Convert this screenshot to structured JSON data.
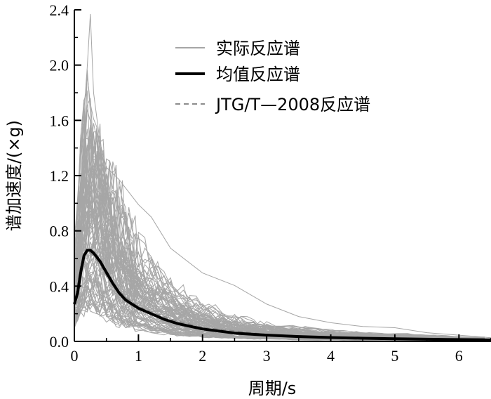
{
  "chart_data": {
    "type": "line",
    "title": "",
    "xlabel": "周期/s",
    "ylabel": "谱加速度/(×g)",
    "xlim": [
      0,
      6.5
    ],
    "ylim": [
      0,
      2.4
    ],
    "x_ticks": [
      "0",
      "1",
      "2",
      "3",
      "4",
      "5",
      "6"
    ],
    "y_ticks": [
      "0.0",
      "0.4",
      "0.8",
      "1.2",
      "1.6",
      "2.0",
      "2.4"
    ],
    "grid": false,
    "legend_position": "top-center",
    "colors": {
      "actual": "#a6a6a6",
      "mean": "#000000",
      "code": "#8c8c8c"
    },
    "legend": [
      {
        "name": "实际反应谱",
        "style": "solid-gray"
      },
      {
        "name": "均值反应谱",
        "style": "solid-black-thick"
      },
      {
        "name": "JTG/T—2008反应谱",
        "style": "dashed-gray"
      }
    ],
    "mean_spectrum": {
      "name": "均值反应谱",
      "x": [
        0,
        0.05,
        0.1,
        0.15,
        0.2,
        0.25,
        0.3,
        0.4,
        0.5,
        0.6,
        0.7,
        0.8,
        0.9,
        1.0,
        1.2,
        1.4,
        1.6,
        1.8,
        2.0,
        2.5,
        3.0,
        3.5,
        4.0,
        4.5,
        5.0,
        5.5,
        6.0,
        6.5
      ],
      "y": [
        0.27,
        0.35,
        0.5,
        0.62,
        0.66,
        0.66,
        0.64,
        0.58,
        0.5,
        0.42,
        0.35,
        0.3,
        0.27,
        0.24,
        0.2,
        0.16,
        0.13,
        0.11,
        0.09,
        0.06,
        0.045,
        0.035,
        0.028,
        0.023,
        0.019,
        0.016,
        0.013,
        0.011
      ]
    },
    "code_spectrum": {
      "name": "JTG/T—2008反应谱",
      "x": [
        0,
        0.1,
        0.2,
        0.3,
        0.4,
        0.5,
        0.6,
        0.8,
        1.0,
        1.5,
        2.0,
        3.0,
        4.0,
        5.0,
        6.0,
        6.5
      ],
      "y": [
        0.27,
        0.55,
        0.66,
        0.62,
        0.56,
        0.48,
        0.41,
        0.32,
        0.25,
        0.16,
        0.1,
        0.05,
        0.03,
        0.02,
        0.015,
        0.012
      ]
    },
    "actual_spectra_envelope": {
      "name": "实际反应谱",
      "x": [
        0,
        0.1,
        0.2,
        0.25,
        0.3,
        0.4,
        0.5,
        0.7,
        1.0,
        1.2,
        1.5,
        2.0,
        2.5,
        3.0,
        3.5,
        4.0,
        4.5,
        5.0,
        5.5,
        6.0,
        6.5
      ],
      "y": [
        0.8,
        1.5,
        2.2,
        2.37,
        2.0,
        1.6,
        1.4,
        1.3,
        1.1,
        1.0,
        0.75,
        0.55,
        0.45,
        0.3,
        0.2,
        0.15,
        0.12,
        0.11,
        0.07,
        0.05,
        0.03
      ]
    }
  }
}
